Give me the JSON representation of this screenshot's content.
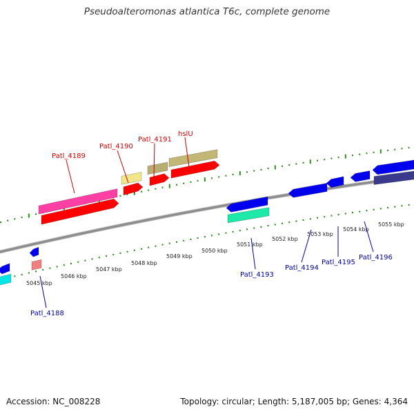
{
  "title": "Pseudoalteromonas atlantica T6c, complete genome",
  "footer": {
    "accession": "Accession: NC_008228",
    "info": "Topology: circular; Length: 5,187,005 bp; Genes: 4,364"
  },
  "colors": {
    "background": "#ffffff",
    "backbone": "#8c8c8c",
    "tick": "#2e8b1e",
    "forward_label": "#cc0000",
    "reverse_label": "#000099",
    "forward_gene": "#ff0000",
    "reverse_gene": "#0000ee"
  },
  "scale_labels": [
    "5045 kbp",
    "5046 kbp",
    "5047 kbp",
    "5048 kbp",
    "5049 kbp",
    "5050 kbp",
    "5051 kbp",
    "5052 kbp",
    "5053 kbp",
    "5054 kbp",
    "5055 kbp"
  ],
  "forward_labels": [
    "Patl_4189",
    "Patl_4190",
    "Patl_4191",
    "hslU"
  ],
  "reverse_labels": [
    "Patl_4188",
    "Patl_4193",
    "Patl_4194",
    "Patl_4195",
    "Patl_4196"
  ]
}
